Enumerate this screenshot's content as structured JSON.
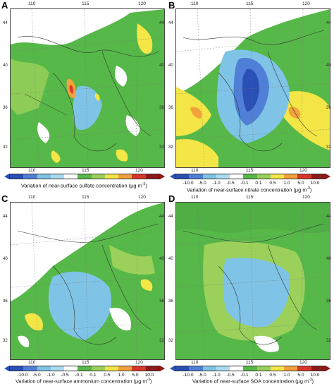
{
  "colors": {
    "dark_blue": "#2a4fb5",
    "mid_blue": "#4f7fd6",
    "light_blue": "#7fc4e6",
    "white": "#ffffff",
    "green": "#56b848",
    "light_green": "#9bd15a",
    "yellow": "#f3e646",
    "orange": "#f2a23a",
    "red": "#d8362a",
    "dark_red": "#8b1a1a"
  },
  "colorbar": {
    "ticks": [
      "-10.0",
      "-5.0",
      "-1.0",
      "-0.5",
      "-0.1",
      "0.1",
      "0.5",
      "1.0",
      "5.0",
      "10.0"
    ],
    "left_arrow": "<",
    "right_arrow": ">"
  },
  "panels": [
    {
      "letter": "A",
      "top_lon_labels": [
        "110",
        "115",
        "120"
      ],
      "lat_labels_left": [
        "44",
        "40",
        "36",
        "32"
      ],
      "lat_labels_right": [
        "44",
        "40",
        "36",
        "32"
      ],
      "bottom_lon_labels": [
        "110",
        "115",
        "120"
      ],
      "caption_left": "Variation of near-surface sulfate concentration (",
      "caption_unit": "μg m",
      "caption_sup": "-3",
      "caption_right": ")"
    },
    {
      "letter": "B",
      "top_lon_labels": [
        "110",
        "115",
        "120"
      ],
      "lat_labels_left": [
        "44",
        "40",
        "36",
        "32"
      ],
      "lat_labels_right": [
        "44",
        "40",
        "36",
        "32"
      ],
      "bottom_lon_labels": [
        "110",
        "115",
        "120"
      ],
      "caption_left": "Variation of near-surface nitrate concentration (",
      "caption_unit": "μg m",
      "caption_sup": "-3",
      "caption_right": ")"
    },
    {
      "letter": "C",
      "top_lon_labels": [
        "110",
        "115",
        "120"
      ],
      "lat_labels_left": [
        "44",
        "40",
        "36",
        "32"
      ],
      "lat_labels_right": [
        "44",
        "40",
        "36",
        "32"
      ],
      "bottom_lon_labels": [
        "110",
        "115",
        "120"
      ],
      "caption_left": "Variation of near-surface ammonium concentration (",
      "caption_unit": "μg m",
      "caption_sup": "-3",
      "caption_right": ")"
    },
    {
      "letter": "D",
      "top_lon_labels": [
        "110",
        "115",
        "120"
      ],
      "lat_labels_left": [
        "44",
        "40",
        "36",
        "32"
      ],
      "lat_labels_right": [
        "44",
        "40",
        "36",
        "32"
      ],
      "bottom_lon_labels": [
        "110",
        "115",
        "120"
      ],
      "caption_left": "Variation of near-surface SOA concentration (",
      "caption_unit": "μg m",
      "caption_sup": "-3",
      "caption_right": ")"
    }
  ]
}
